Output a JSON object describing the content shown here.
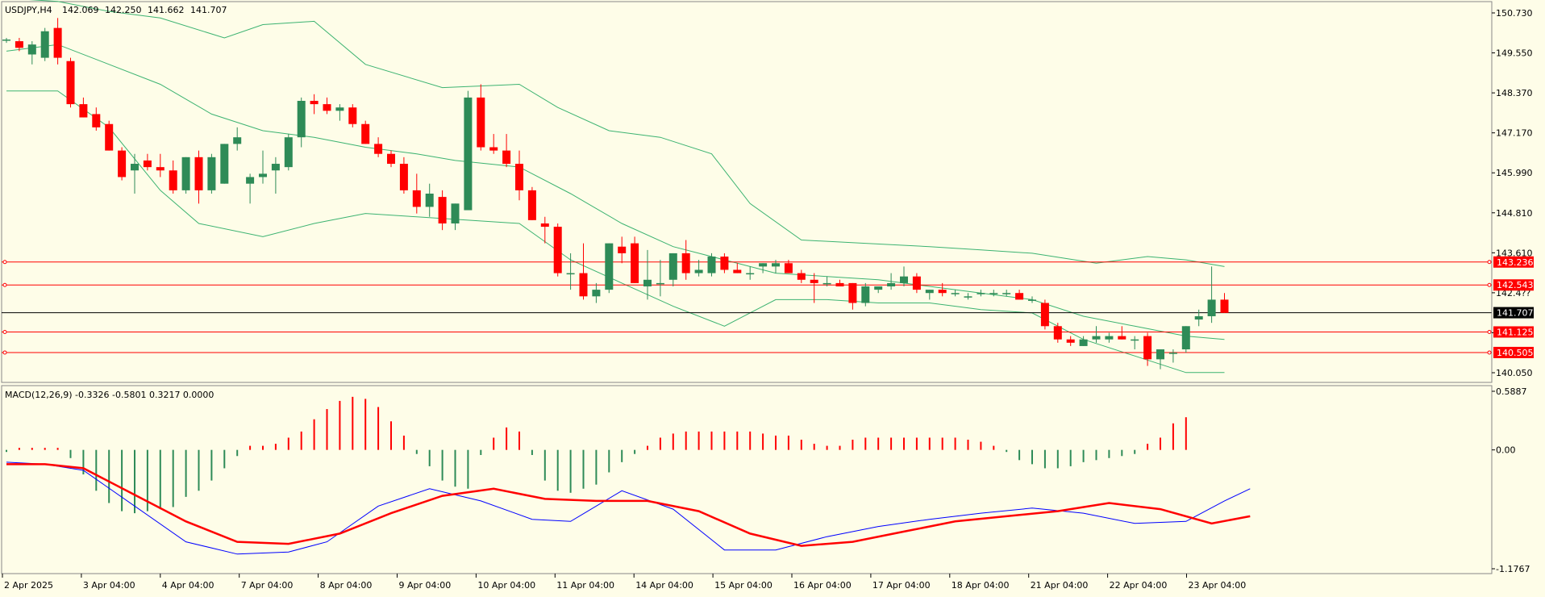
{
  "colors": {
    "background": "#fefde8",
    "bull": "#2e8b57",
    "bear": "#ff0000",
    "band": "#3cb371",
    "level_line": "#ff0000",
    "current_line": "#000000",
    "macd_signal": "#ff0000",
    "macd_main": "#0000ff"
  },
  "chart_data": [
    {
      "type": "candlestick",
      "title": "USDJPY,H4",
      "ohlc_readout": [
        "142.069",
        "142.250",
        "141.662",
        "141.707"
      ],
      "y_ticks": [
        "150.730",
        "149.550",
        "148.370",
        "147.170",
        "145.990",
        "144.810",
        "143.610",
        "142.4??",
        "141.?50",
        "140.050"
      ],
      "ylim": [
        139.7,
        150.9
      ],
      "current_price": {
        "value": 141.707,
        "label": "141.707"
      },
      "levels": [
        {
          "value": 143.236,
          "label": "143.236"
        },
        {
          "value": 142.543,
          "label": "142.543"
        },
        {
          "value": 141.125,
          "label": "141.125"
        },
        {
          "value": 140.505,
          "label": "140.505"
        }
      ],
      "x_labels": [
        "2 Apr 2025",
        "3 Apr 04:00",
        "4 Apr 04:00",
        "7 Apr 04:00",
        "8 Apr 04:00",
        "9 Apr 04:00",
        "10 Apr 04:00",
        "11 Apr 04:00",
        "14 Apr 04:00",
        "15 Apr 04:00",
        "16 Apr 04:00",
        "17 Apr 04:00",
        "18 Apr 04:00",
        "21 Apr 04:00",
        "22 Apr 04:00",
        "23 Apr 04:00"
      ],
      "candles": [
        [
          149.95,
          150.0,
          149.85,
          149.95
        ],
        [
          149.9,
          150.0,
          149.6,
          149.7
        ],
        [
          149.5,
          149.9,
          149.2,
          149.8
        ],
        [
          149.4,
          150.3,
          149.3,
          150.2
        ],
        [
          150.3,
          150.6,
          149.2,
          149.4
        ],
        [
          149.3,
          149.4,
          147.9,
          148.0
        ],
        [
          148.0,
          148.2,
          147.6,
          147.6
        ],
        [
          147.7,
          147.9,
          147.2,
          147.3
        ],
        [
          147.4,
          147.5,
          146.6,
          146.6
        ],
        [
          146.6,
          146.7,
          145.7,
          145.8
        ],
        [
          146.0,
          146.5,
          145.3,
          146.2
        ],
        [
          146.3,
          146.5,
          146.0,
          146.1
        ],
        [
          146.1,
          146.5,
          145.8,
          146.0
        ],
        [
          146.0,
          146.3,
          145.3,
          145.4
        ],
        [
          145.4,
          146.4,
          145.3,
          146.4
        ],
        [
          146.4,
          146.6,
          145.0,
          145.4
        ],
        [
          145.4,
          146.5,
          145.3,
          146.4
        ],
        [
          145.6,
          146.8,
          145.6,
          146.8
        ],
        [
          146.8,
          147.3,
          146.6,
          147.0
        ],
        [
          145.6,
          145.9,
          145.0,
          145.8
        ],
        [
          145.8,
          146.6,
          145.6,
          145.9
        ],
        [
          146.0,
          146.4,
          145.3,
          146.2
        ],
        [
          146.1,
          147.1,
          146.0,
          147.0
        ],
        [
          147.0,
          148.2,
          146.7,
          148.1
        ],
        [
          148.1,
          148.3,
          147.7,
          148.0
        ],
        [
          148.0,
          148.2,
          147.7,
          147.8
        ],
        [
          147.8,
          148.0,
          147.5,
          147.9
        ],
        [
          147.9,
          148.0,
          147.3,
          147.4
        ],
        [
          147.4,
          147.5,
          146.8,
          146.8
        ],
        [
          146.8,
          147.0,
          146.4,
          146.5
        ],
        [
          146.5,
          146.6,
          146.1,
          146.2
        ],
        [
          146.2,
          146.4,
          145.3,
          145.4
        ],
        [
          145.4,
          145.9,
          144.7,
          144.9
        ],
        [
          144.9,
          145.6,
          144.6,
          145.3
        ],
        [
          145.2,
          145.4,
          144.2,
          144.4
        ],
        [
          144.4,
          145.0,
          144.2,
          145.0
        ],
        [
          144.8,
          148.4,
          144.8,
          148.2
        ],
        [
          148.2,
          148.6,
          146.6,
          146.7
        ],
        [
          146.7,
          147.1,
          146.5,
          146.6
        ],
        [
          146.6,
          147.1,
          146.1,
          146.2
        ],
        [
          146.2,
          146.6,
          145.1,
          145.4
        ],
        [
          145.4,
          145.5,
          144.5,
          144.5
        ],
        [
          144.4,
          144.6,
          143.8,
          144.3
        ],
        [
          144.3,
          144.4,
          142.8,
          142.9
        ],
        [
          142.9,
          143.5,
          142.4,
          142.9
        ],
        [
          142.9,
          143.8,
          142.1,
          142.2
        ],
        [
          142.2,
          142.6,
          142.0,
          142.4
        ],
        [
          142.4,
          143.8,
          142.3,
          143.8
        ],
        [
          143.7,
          144.0,
          143.2,
          143.5
        ],
        [
          143.8,
          144.0,
          142.6,
          142.6
        ],
        [
          142.5,
          143.6,
          142.1,
          142.7
        ],
        [
          142.6,
          143.3,
          142.2,
          142.6
        ],
        [
          142.7,
          143.5,
          142.5,
          143.5
        ],
        [
          143.5,
          143.9,
          142.7,
          142.9
        ],
        [
          142.9,
          143.3,
          142.8,
          143.0
        ],
        [
          142.9,
          143.5,
          142.8,
          143.4
        ],
        [
          143.4,
          143.5,
          142.9,
          143.0
        ],
        [
          143.0,
          143.2,
          142.9,
          142.9
        ],
        [
          142.9,
          143.1,
          142.7,
          142.9
        ],
        [
          143.1,
          143.2,
          142.9,
          143.2
        ],
        [
          143.1,
          143.3,
          142.9,
          143.2
        ],
        [
          143.2,
          143.3,
          142.9,
          142.9
        ],
        [
          142.9,
          143.0,
          142.6,
          142.7
        ],
        [
          142.7,
          142.9,
          142.0,
          142.6
        ],
        [
          142.6,
          142.8,
          142.5,
          142.6
        ],
        [
          142.6,
          142.7,
          142.5,
          142.5
        ],
        [
          142.6,
          142.6,
          141.8,
          142.0
        ],
        [
          142.0,
          142.6,
          141.9,
          142.5
        ],
        [
          142.4,
          142.5,
          142.3,
          142.5
        ],
        [
          142.5,
          142.9,
          142.4,
          142.6
        ],
        [
          142.6,
          143.1,
          142.5,
          142.8
        ],
        [
          142.8,
          142.9,
          142.3,
          142.4
        ],
        [
          142.3,
          142.4,
          142.1,
          142.4
        ],
        [
          142.4,
          142.6,
          142.2,
          142.3
        ],
        [
          142.3,
          142.4,
          142.2,
          142.3
        ],
        [
          142.2,
          142.3,
          142.1,
          142.2
        ],
        [
          142.3,
          142.4,
          142.2,
          142.3
        ],
        [
          142.3,
          142.4,
          142.2,
          142.3
        ],
        [
          142.3,
          142.4,
          142.2,
          142.3
        ],
        [
          142.3,
          142.4,
          142.2,
          142.1
        ],
        [
          142.1,
          142.2,
          142.0,
          142.1
        ],
        [
          142.0,
          142.1,
          141.2,
          141.3
        ],
        [
          141.3,
          141.4,
          140.8,
          140.9
        ],
        [
          140.9,
          141.0,
          140.7,
          140.8
        ],
        [
          140.7,
          141.0,
          140.7,
          140.9
        ],
        [
          140.9,
          141.3,
          140.8,
          141.0
        ],
        [
          140.9,
          141.1,
          140.8,
          141.0
        ],
        [
          141.0,
          141.3,
          140.9,
          140.9
        ],
        [
          140.9,
          141.0,
          140.6,
          140.9
        ],
        [
          141.0,
          141.1,
          140.1,
          140.3
        ],
        [
          140.3,
          140.6,
          140.0,
          140.6
        ],
        [
          140.5,
          140.6,
          140.2,
          140.5
        ],
        [
          140.6,
          141.3,
          140.5,
          141.3
        ],
        [
          141.5,
          141.8,
          141.3,
          141.6
        ],
        [
          141.6,
          143.1,
          141.4,
          142.1
        ],
        [
          142.1,
          142.3,
          141.7,
          141.7
        ]
      ],
      "upper_band": [
        [
          0,
          151.2
        ],
        [
          4,
          151.1
        ],
        [
          8,
          150.8
        ],
        [
          12,
          150.6
        ],
        [
          17,
          150.0
        ],
        [
          20,
          150.4
        ],
        [
          24,
          150.5
        ],
        [
          28,
          149.2
        ],
        [
          34,
          148.5
        ],
        [
          40,
          148.6
        ],
        [
          43,
          147.9
        ],
        [
          47,
          147.2
        ],
        [
          51,
          147.0
        ],
        [
          55,
          146.5
        ],
        [
          58,
          145.0
        ],
        [
          62,
          143.9
        ],
        [
          67,
          143.8
        ],
        [
          72,
          143.7
        ],
        [
          76,
          143.6
        ],
        [
          80,
          143.5
        ],
        [
          85,
          143.2
        ],
        [
          89,
          143.4
        ],
        [
          92,
          143.3
        ],
        [
          95,
          143.1
        ]
      ],
      "middle_band": [
        [
          0,
          149.6
        ],
        [
          4,
          149.8
        ],
        [
          8,
          149.2
        ],
        [
          12,
          148.6
        ],
        [
          16,
          147.7
        ],
        [
          20,
          147.2
        ],
        [
          24,
          147.0
        ],
        [
          28,
          146.7
        ],
        [
          32,
          146.5
        ],
        [
          35,
          146.3
        ],
        [
          40,
          146.1
        ],
        [
          44,
          145.3
        ],
        [
          48,
          144.4
        ],
        [
          52,
          143.7
        ],
        [
          56,
          143.3
        ],
        [
          60,
          142.9
        ],
        [
          64,
          142.8
        ],
        [
          68,
          142.7
        ],
        [
          72,
          142.5
        ],
        [
          76,
          142.3
        ],
        [
          80,
          142.1
        ],
        [
          84,
          141.6
        ],
        [
          88,
          141.3
        ],
        [
          92,
          141.0
        ],
        [
          95,
          140.9
        ]
      ],
      "lower_band": [
        [
          0,
          148.4
        ],
        [
          4,
          148.4
        ],
        [
          8,
          147.3
        ],
        [
          12,
          145.4
        ],
        [
          15,
          144.4
        ],
        [
          20,
          144.0
        ],
        [
          24,
          144.4
        ],
        [
          28,
          144.7
        ],
        [
          32,
          144.6
        ],
        [
          36,
          144.5
        ],
        [
          40,
          144.4
        ],
        [
          44,
          143.3
        ],
        [
          48,
          142.6
        ],
        [
          52,
          141.9
        ],
        [
          56,
          141.3
        ],
        [
          60,
          142.1
        ],
        [
          64,
          142.1
        ],
        [
          68,
          142.0
        ],
        [
          72,
          142.0
        ],
        [
          76,
          141.8
        ],
        [
          80,
          141.7
        ],
        [
          84,
          140.9
        ],
        [
          88,
          140.4
        ],
        [
          92,
          139.9
        ],
        [
          95,
          139.9
        ]
      ]
    },
    {
      "type": "macd",
      "label": "MACD(12,26,9) -0.3326 -0.5801 0.3217 0.0000",
      "y_ticks": [
        "0.5887",
        "0.00",
        "-1.1767"
      ],
      "ylim": [
        -1.18,
        0.59
      ],
      "histogram": [
        -0.02,
        0.02,
        0.02,
        0.02,
        0.02,
        -0.08,
        -0.24,
        -0.4,
        -0.52,
        -0.6,
        -0.62,
        -0.6,
        -0.58,
        -0.56,
        -0.46,
        -0.4,
        -0.3,
        -0.18,
        -0.06,
        0.04,
        0.04,
        0.06,
        0.12,
        0.18,
        0.3,
        0.4,
        0.48,
        0.52,
        0.5,
        0.42,
        0.28,
        0.14,
        -0.04,
        -0.16,
        -0.3,
        -0.36,
        -0.38,
        -0.05,
        0.12,
        0.22,
        0.18,
        -0.05,
        -0.3,
        -0.4,
        -0.42,
        -0.38,
        -0.34,
        -0.22,
        -0.12,
        -0.04,
        0.04,
        0.12,
        0.16,
        0.18,
        0.18,
        0.18,
        0.18,
        0.18,
        0.18,
        0.16,
        0.14,
        0.14,
        0.1,
        0.06,
        0.04,
        0.04,
        0.1,
        0.12,
        0.12,
        0.12,
        0.12,
        0.12,
        0.12,
        0.12,
        0.12,
        0.1,
        0.08,
        0.04,
        -0.02,
        -0.1,
        -0.14,
        -0.18,
        -0.18,
        -0.16,
        -0.12,
        -0.1,
        -0.08,
        -0.06,
        -0.04,
        0.06,
        0.12,
        0.26,
        0.32
      ],
      "main_line": [
        [
          0,
          -0.12
        ],
        [
          3,
          -0.14
        ],
        [
          6,
          -0.2
        ],
        [
          10,
          -0.55
        ],
        [
          14,
          -0.9
        ],
        [
          18,
          -1.02
        ],
        [
          22,
          -1.0
        ],
        [
          25,
          -0.9
        ],
        [
          29,
          -0.55
        ],
        [
          33,
          -0.38
        ],
        [
          37,
          -0.5
        ],
        [
          41,
          -0.68
        ],
        [
          44,
          -0.7
        ],
        [
          48,
          -0.4
        ],
        [
          52,
          -0.58
        ],
        [
          56,
          -0.98
        ],
        [
          60,
          -0.98
        ],
        [
          64,
          -0.85
        ],
        [
          68,
          -0.75
        ],
        [
          72,
          -0.68
        ],
        [
          76,
          -0.62
        ],
        [
          80,
          -0.57
        ],
        [
          84,
          -0.62
        ],
        [
          88,
          -0.72
        ],
        [
          92,
          -0.7
        ],
        [
          95,
          -0.5
        ],
        [
          97,
          -0.38
        ]
      ],
      "signal_line": [
        [
          0,
          -0.14
        ],
        [
          3,
          -0.14
        ],
        [
          6,
          -0.18
        ],
        [
          10,
          -0.44
        ],
        [
          14,
          -0.7
        ],
        [
          18,
          -0.9
        ],
        [
          22,
          -0.92
        ],
        [
          26,
          -0.82
        ],
        [
          30,
          -0.62
        ],
        [
          34,
          -0.45
        ],
        [
          38,
          -0.38
        ],
        [
          42,
          -0.48
        ],
        [
          46,
          -0.5
        ],
        [
          50,
          -0.5
        ],
        [
          54,
          -0.6
        ],
        [
          58,
          -0.82
        ],
        [
          62,
          -0.94
        ],
        [
          66,
          -0.9
        ],
        [
          70,
          -0.8
        ],
        [
          74,
          -0.7
        ],
        [
          78,
          -0.65
        ],
        [
          82,
          -0.6
        ],
        [
          86,
          -0.52
        ],
        [
          90,
          -0.58
        ],
        [
          94,
          -0.72
        ],
        [
          97,
          -0.65
        ]
      ]
    }
  ]
}
